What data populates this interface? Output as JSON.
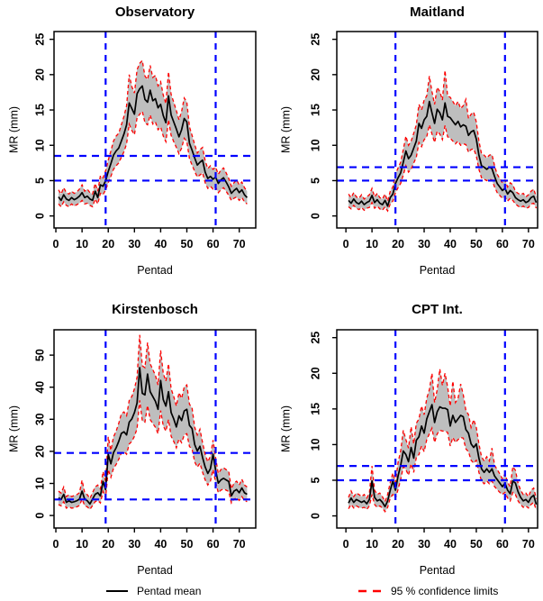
{
  "figure": {
    "colors": {
      "mean_line": "#000000",
      "ci_line": "#ff0000",
      "band_fill": "#bebebe",
      "threshold_line": "#0000ff",
      "axis": "#000000",
      "background": "#ffffff"
    },
    "legend": {
      "mean_label": "Pentad mean",
      "ci_label": "95 % confidence limits"
    }
  },
  "chart_data": [
    {
      "id": "observatory",
      "type": "line",
      "title": "Observatory",
      "xlabel": "Pentad",
      "ylabel": "MR (mm)",
      "x_start": 1,
      "xticks": [
        0,
        10,
        20,
        30,
        40,
        50,
        60,
        70
      ],
      "yticks": [
        0,
        5,
        10,
        15,
        20,
        25
      ],
      "xlim": [
        -0.7,
        76.3
      ],
      "ylim": [
        -1.7,
        26.1
      ],
      "vlines": [
        19,
        61
      ],
      "hlines": [
        8.5,
        5
      ],
      "grid": false,
      "legend_position": "bottom",
      "series": [
        {
          "name": "Pentad mean",
          "role": "mean",
          "values": [
            2.7,
            2.2,
            3.0,
            2.4,
            2.2,
            2.6,
            2.3,
            2.5,
            2.8,
            3.3,
            2.6,
            2.8,
            2.4,
            2.2,
            3.5,
            2.6,
            4.4,
            4.2,
            5.0,
            6.3,
            7.4,
            8.6,
            9.2,
            9.6,
            10.6,
            11.6,
            12.9,
            16.0,
            15.2,
            14.4,
            17.3,
            18.0,
            18.4,
            16.5,
            16.1,
            17.8,
            16.3,
            16.6,
            15.3,
            15.8,
            14.2,
            13.2,
            17.0,
            14.3,
            13.3,
            12.3,
            11.2,
            12.2,
            13.8,
            13.3,
            10.3,
            9.3,
            8.2,
            7.2,
            7.6,
            7.9,
            6.2,
            5.3,
            5.6,
            5.2,
            5.5,
            4.6,
            5.1,
            5.4,
            4.8,
            4.1,
            3.2,
            3.6,
            3.9,
            3.3,
            3.7,
            3.0,
            2.6
          ]
        },
        {
          "name": "95 % CI upper",
          "role": "upper",
          "values": [
            3.7,
            3.1,
            4.0,
            3.3,
            3.1,
            3.5,
            3.2,
            3.4,
            3.8,
            4.4,
            3.5,
            3.8,
            3.3,
            3.1,
            4.6,
            3.5,
            5.7,
            5.4,
            6.4,
            7.9,
            9.2,
            10.6,
            11.3,
            11.7,
            12.9,
            14.1,
            15.6,
            20.0,
            18.3,
            17.4,
            20.7,
            21.6,
            22.0,
            19.8,
            19.3,
            21.3,
            19.6,
            19.9,
            18.4,
            19.0,
            17.1,
            15.9,
            20.4,
            17.2,
            16.1,
            14.9,
            13.6,
            14.8,
            16.7,
            16.1,
            12.6,
            11.4,
            10.1,
            8.9,
            9.4,
            9.7,
            7.8,
            6.7,
            7.1,
            6.6,
            6.9,
            5.9,
            6.5,
            6.8,
            6.1,
            5.3,
            4.2,
            4.7,
            5.1,
            4.4,
            4.8,
            4.0,
            3.5
          ]
        },
        {
          "name": "95 % CI lower",
          "role": "lower",
          "values": [
            1.7,
            1.3,
            2.0,
            1.5,
            1.3,
            1.7,
            1.4,
            1.6,
            1.8,
            2.2,
            1.7,
            1.8,
            1.5,
            1.3,
            2.4,
            1.7,
            3.2,
            3.0,
            3.7,
            4.7,
            5.6,
            6.6,
            7.1,
            7.5,
            8.3,
            9.1,
            10.2,
            13.0,
            12.1,
            11.5,
            13.9,
            14.4,
            14.8,
            13.2,
            12.9,
            14.3,
            13.0,
            13.3,
            12.2,
            12.6,
            11.3,
            10.5,
            13.6,
            11.4,
            10.5,
            9.7,
            8.8,
            9.6,
            11.0,
            10.5,
            8.1,
            7.2,
            6.3,
            5.5,
            5.8,
            6.1,
            4.7,
            3.9,
            4.2,
            3.8,
            4.1,
            3.3,
            3.7,
            4.0,
            3.5,
            2.9,
            2.2,
            2.5,
            2.7,
            2.2,
            2.6,
            2.0,
            1.7
          ]
        }
      ]
    },
    {
      "id": "maitland",
      "type": "line",
      "title": "Maitland",
      "xlabel": "Pentad",
      "ylabel": "MR (mm)",
      "x_start": 1,
      "xticks": [
        0,
        10,
        20,
        30,
        40,
        50,
        60,
        70
      ],
      "yticks": [
        0,
        5,
        10,
        15,
        20,
        25
      ],
      "xlim": [
        -3.5,
        73.5
      ],
      "ylim": [
        -1.7,
        26.1
      ],
      "vlines": [
        19,
        61
      ],
      "hlines": [
        6.9,
        5
      ],
      "grid": false,
      "legend_position": "bottom",
      "series": [
        {
          "name": "Pentad mean",
          "role": "mean",
          "values": [
            2.2,
            1.8,
            2.4,
            1.9,
            1.7,
            2.1,
            1.6,
            1.9,
            2.1,
            2.9,
            1.9,
            2.3,
            1.8,
            1.6,
            2.2,
            1.4,
            2.6,
            3.1,
            4.6,
            5.4,
            6.1,
            7.6,
            9.2,
            8.1,
            8.6,
            9.6,
            10.6,
            13.1,
            12.4,
            13.6,
            14.1,
            16.2,
            14.6,
            13.1,
            15.1,
            14.6,
            13.6,
            16.0,
            14.1,
            13.9,
            13.4,
            12.9,
            13.4,
            12.6,
            12.9,
            12.7,
            11.4,
            11.9,
            12.1,
            10.9,
            8.6,
            7.1,
            6.9,
            6.6,
            6.9,
            6.7,
            5.6,
            4.6,
            4.1,
            3.6,
            3.9,
            3.1,
            3.6,
            3.3,
            2.6,
            2.3,
            2.1,
            2.3,
            1.9,
            2.1,
            2.6,
            2.8,
            1.9
          ]
        },
        {
          "name": "95 % CI upper",
          "role": "upper",
          "values": [
            3.1,
            2.6,
            3.3,
            2.7,
            2.5,
            3.0,
            2.4,
            2.7,
            3.0,
            3.9,
            2.7,
            3.2,
            2.6,
            2.4,
            3.1,
            2.1,
            3.5,
            4.1,
            5.9,
            6.8,
            7.6,
            9.4,
            11.3,
            10.0,
            10.6,
            11.7,
            12.9,
            15.8,
            15.0,
            16.4,
            17.0,
            19.8,
            17.6,
            15.8,
            18.2,
            17.6,
            16.4,
            20.6,
            17.0,
            16.8,
            16.2,
            15.6,
            16.2,
            15.2,
            15.6,
            16.5,
            13.8,
            14.4,
            14.7,
            13.3,
            10.6,
            8.8,
            8.6,
            8.2,
            8.6,
            8.7,
            7.1,
            5.9,
            5.3,
            4.7,
            5.1,
            4.1,
            4.7,
            4.4,
            3.5,
            3.2,
            3.0,
            3.2,
            2.7,
            3.0,
            3.5,
            3.8,
            2.7
          ]
        },
        {
          "name": "95 % CI lower",
          "role": "lower",
          "values": [
            1.3,
            1.0,
            1.5,
            1.1,
            0.9,
            1.2,
            0.8,
            1.1,
            1.2,
            1.9,
            1.1,
            1.4,
            1.0,
            0.8,
            1.3,
            0.7,
            1.7,
            2.1,
            3.3,
            4.0,
            4.6,
            5.8,
            7.1,
            6.2,
            6.6,
            7.5,
            8.3,
            10.4,
            9.8,
            10.8,
            11.2,
            12.9,
            11.6,
            10.4,
            12.0,
            11.6,
            10.8,
            12.8,
            11.2,
            11.0,
            10.6,
            10.2,
            10.6,
            10.0,
            10.2,
            10.1,
            9.0,
            9.4,
            9.5,
            8.5,
            6.6,
            5.4,
            5.2,
            5.0,
            5.2,
            5.1,
            4.1,
            3.3,
            2.9,
            2.5,
            2.7,
            2.1,
            2.5,
            2.2,
            1.7,
            1.4,
            1.2,
            1.4,
            1.1,
            1.2,
            1.7,
            1.8,
            1.1
          ]
        }
      ]
    },
    {
      "id": "kirstenbosch",
      "type": "line",
      "title": "Kirstenbosch",
      "xlabel": "Pentad",
      "ylabel": "MR (mm)",
      "x_start": 1,
      "xticks": [
        0,
        10,
        20,
        30,
        40,
        50,
        60,
        70
      ],
      "yticks": [
        0,
        10,
        20,
        30,
        40,
        50
      ],
      "xlim": [
        -0.7,
        76.3
      ],
      "ylim": [
        -3.9,
        57.9
      ],
      "vlines": [
        19,
        61
      ],
      "hlines": [
        19.5,
        5
      ],
      "grid": false,
      "legend_position": "bottom",
      "series": [
        {
          "name": "Pentad mean",
          "role": "mean",
          "values": [
            5.5,
            5.0,
            6.6,
            4.1,
            4.6,
            4.1,
            4.3,
            4.6,
            5.1,
            7.6,
            5.1,
            4.6,
            3.6,
            5.1,
            6.6,
            7.1,
            6.1,
            10.6,
            8.1,
            19.1,
            16.1,
            19.6,
            21.1,
            23.1,
            25.6,
            26.1,
            25.1,
            29.1,
            30.1,
            32.1,
            35.1,
            46.1,
            38.1,
            37.6,
            44.1,
            38.6,
            37.1,
            35.6,
            33.1,
            42.1,
            36.1,
            34.1,
            38.6,
            32.1,
            30.1,
            27.6,
            31.1,
            29.6,
            32.6,
            33.1,
            28.1,
            27.1,
            22.1,
            20.1,
            21.6,
            18.1,
            15.1,
            13.1,
            14.6,
            19.1,
            14.1,
            10.1,
            11.1,
            11.6,
            11.1,
            10.6,
            6.1,
            7.6,
            8.1,
            7.1,
            8.6,
            7.1,
            6.6
          ]
        },
        {
          "name": "95 % CI upper",
          "role": "upper",
          "values": [
            7.6,
            7.0,
            8.9,
            5.9,
            6.5,
            5.9,
            6.2,
            6.5,
            7.1,
            11.0,
            7.1,
            6.5,
            5.3,
            7.1,
            8.9,
            9.5,
            8.3,
            13.7,
            10.7,
            24.5,
            20.3,
            24.5,
            26.3,
            28.7,
            31.7,
            32.3,
            31.1,
            35.9,
            37.1,
            39.5,
            43.1,
            56.3,
            46.7,
            46.1,
            53.9,
            47.3,
            45.5,
            43.7,
            40.7,
            51.5,
            44.3,
            41.9,
            47.3,
            39.5,
            37.1,
            34.1,
            38.3,
            36.5,
            40.1,
            40.7,
            34.7,
            33.5,
            27.5,
            25.1,
            26.9,
            22.7,
            19.1,
            16.7,
            18.5,
            23.5,
            17.9,
            13.1,
            14.3,
            14.9,
            14.3,
            13.7,
            8.3,
            10.1,
            10.7,
            9.5,
            11.3,
            9.5,
            8.9
          ]
        },
        {
          "name": "95 % CI lower",
          "role": "lower",
          "values": [
            3.4,
            3.0,
            4.3,
            2.3,
            2.7,
            2.3,
            2.4,
            2.7,
            3.1,
            5.1,
            3.1,
            2.7,
            1.9,
            3.1,
            4.3,
            4.7,
            3.9,
            7.5,
            5.5,
            14.3,
            11.9,
            14.7,
            15.9,
            17.5,
            19.5,
            19.9,
            19.1,
            22.3,
            23.1,
            24.7,
            27.1,
            35.9,
            29.5,
            29.1,
            34.3,
            29.9,
            28.7,
            27.5,
            25.5,
            32.7,
            27.9,
            26.3,
            29.9,
            24.7,
            23.1,
            21.1,
            23.9,
            22.7,
            25.1,
            25.5,
            21.5,
            20.7,
            16.7,
            15.1,
            16.3,
            13.5,
            11.1,
            9.5,
            10.7,
            14.3,
            10.3,
            7.1,
            7.9,
            8.3,
            7.9,
            7.5,
            3.9,
            5.1,
            5.5,
            4.7,
            5.9,
            4.7,
            4.3
          ]
        }
      ]
    },
    {
      "id": "cpt-int",
      "type": "line",
      "title": "CPT Int.",
      "xlabel": "Pentad",
      "ylabel": "MR (mm)",
      "x_start": 1,
      "xticks": [
        0,
        10,
        20,
        30,
        40,
        50,
        60,
        70
      ],
      "yticks": [
        0,
        5,
        10,
        15,
        20,
        25
      ],
      "xlim": [
        -3.5,
        73.5
      ],
      "ylim": [
        -1.7,
        26.1
      ],
      "vlines": [
        19,
        61
      ],
      "hlines": [
        7,
        5
      ],
      "grid": false,
      "legend_position": "bottom",
      "series": [
        {
          "name": "Pentad mean",
          "role": "mean",
          "values": [
            1.8,
            2.5,
            1.9,
            2.3,
            2.1,
            1.9,
            2.1,
            1.7,
            2.3,
            4.9,
            2.6,
            2.1,
            2.3,
            1.9,
            1.3,
            2.1,
            3.6,
            4.9,
            3.6,
            5.6,
            7.1,
            9.1,
            8.6,
            7.6,
            9.6,
            8.1,
            10.6,
            11.1,
            12.6,
            11.6,
            13.6,
            14.6,
            15.6,
            13.1,
            14.6,
            15.3,
            15.1,
            15.1,
            14.9,
            12.6,
            14.1,
            13.1,
            13.6,
            14.1,
            13.9,
            12.1,
            11.6,
            10.1,
            9.6,
            10.1,
            8.1,
            6.6,
            6.1,
            6.6,
            6.1,
            6.6,
            5.6,
            5.1,
            4.6,
            4.1,
            4.6,
            3.6,
            3.1,
            4.9,
            4.6,
            3.4,
            2.6,
            2.1,
            2.3,
            1.9,
            2.6,
            2.9,
            1.6
          ]
        },
        {
          "name": "95 % CI upper",
          "role": "upper",
          "values": [
            2.6,
            3.5,
            2.7,
            3.2,
            3.0,
            2.7,
            3.0,
            2.5,
            3.2,
            7.0,
            3.6,
            3.0,
            3.2,
            2.7,
            2.0,
            3.0,
            4.7,
            6.0,
            4.7,
            7.5,
            9.1,
            12.0,
            10.7,
            9.5,
            12.5,
            10.1,
            13.0,
            13.6,
            15.4,
            14.2,
            16.5,
            17.7,
            20.0,
            15.9,
            17.7,
            20.6,
            18.3,
            20.0,
            18.1,
            15.4,
            18.9,
            15.9,
            16.5,
            18.5,
            17.0,
            14.8,
            14.2,
            12.4,
            13.5,
            12.4,
            10.1,
            8.3,
            7.7,
            8.3,
            7.7,
            9.5,
            7.1,
            6.5,
            5.9,
            5.2,
            5.9,
            4.7,
            4.1,
            6.9,
            6.4,
            4.6,
            3.6,
            3.0,
            3.2,
            2.7,
            3.6,
            3.9,
            2.4
          ]
        },
        {
          "name": "95 % CI lower",
          "role": "lower",
          "values": [
            1.0,
            1.6,
            1.1,
            1.4,
            1.2,
            1.1,
            1.2,
            0.9,
            1.4,
            3.0,
            1.6,
            1.2,
            1.4,
            1.1,
            0.6,
            1.2,
            2.5,
            3.0,
            2.5,
            3.7,
            5.1,
            6.9,
            6.5,
            5.7,
            7.3,
            6.1,
            8.2,
            8.6,
            9.8,
            9.0,
            10.7,
            11.5,
            12.3,
            10.3,
            11.5,
            12.0,
            11.9,
            11.9,
            11.7,
            9.8,
            11.0,
            10.3,
            10.7,
            11.0,
            10.9,
            9.4,
            9.0,
            7.8,
            7.4,
            7.8,
            6.1,
            4.9,
            4.5,
            4.9,
            4.5,
            4.9,
            4.1,
            3.7,
            3.3,
            3.0,
            3.3,
            2.5,
            2.1,
            3.3,
            3.0,
            2.1,
            1.6,
            1.2,
            1.4,
            1.1,
            1.6,
            1.9,
            0.8
          ]
        }
      ]
    }
  ]
}
